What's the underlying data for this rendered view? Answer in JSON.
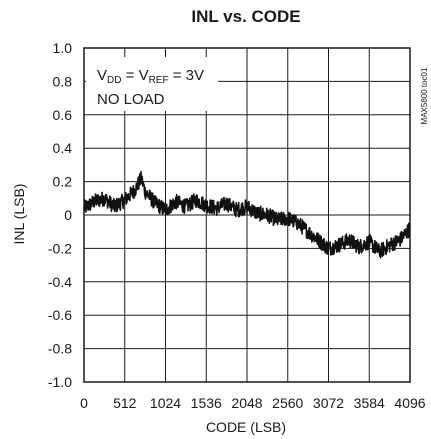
{
  "chart_data": {
    "type": "line",
    "title": "INL vs. CODE",
    "xlabel": "CODE (LSB)",
    "ylabel": "INL (LSB)",
    "xlim": [
      0,
      4096
    ],
    "ylim": [
      -1.0,
      1.0
    ],
    "x_ticks": [
      "0",
      "512",
      "1024",
      "1536",
      "2048",
      "2560",
      "3072",
      "3584",
      "4096"
    ],
    "y_ticks": [
      "1.0",
      "0.8",
      "0.6",
      "0.4",
      "0.2",
      "0",
      "-0.2",
      "-0.4",
      "-0.6",
      "-0.8",
      "-1.0"
    ],
    "grid": true,
    "annotation": {
      "line1": {
        "v1": "V",
        "v1_sub": "DD",
        "eq1": " = V",
        "v2_sub": "REF",
        "eq2": " = 3V"
      },
      "line2": "NO LOAD"
    },
    "side_label": "MAX5800 toc01",
    "series": [
      {
        "color": "#111111",
        "x": [
          0,
          128,
          256,
          384,
          512,
          640,
          720,
          768,
          896,
          1024,
          1152,
          1280,
          1408,
          1536,
          1664,
          1792,
          1920,
          2048,
          2176,
          2304,
          2432,
          2560,
          2688,
          2816,
          2944,
          3072,
          3200,
          3328,
          3456,
          3584,
          3712,
          3840,
          3968,
          4096
        ],
        "y": [
          0.04,
          0.08,
          0.1,
          0.05,
          0.09,
          0.15,
          0.22,
          0.14,
          0.07,
          0.03,
          0.08,
          0.05,
          0.09,
          0.06,
          0.04,
          0.07,
          0.03,
          0.05,
          0.01,
          0.0,
          -0.03,
          -0.02,
          -0.05,
          -0.1,
          -0.15,
          -0.2,
          -0.18,
          -0.15,
          -0.19,
          -0.16,
          -0.22,
          -0.18,
          -0.15,
          -0.08
        ]
      }
    ]
  }
}
